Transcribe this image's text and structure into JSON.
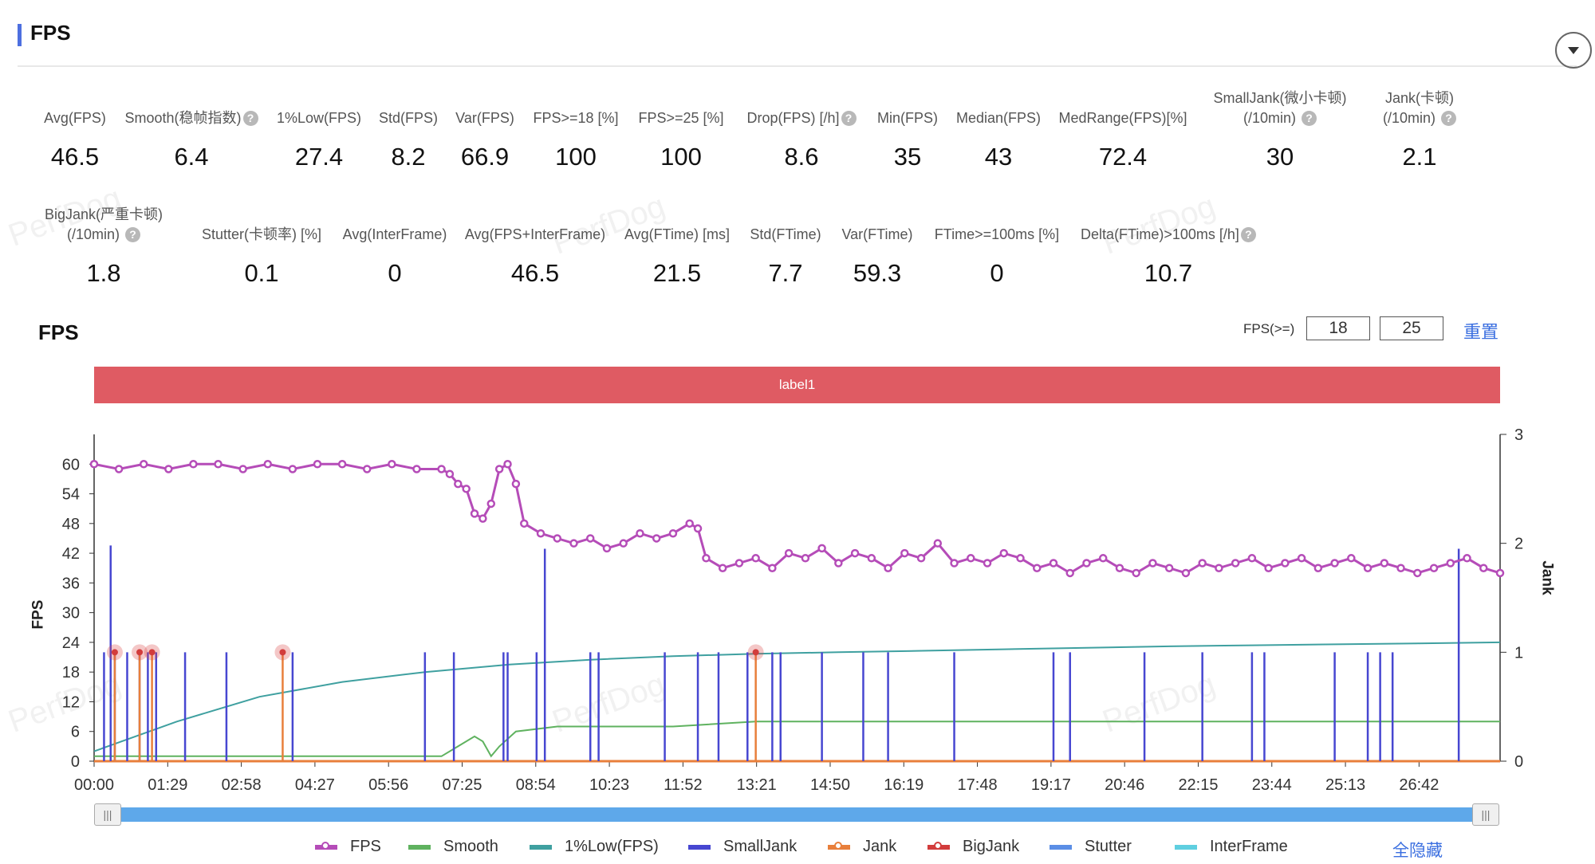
{
  "section": {
    "title": "FPS"
  },
  "metrics_row1": [
    {
      "label": "Avg(FPS)",
      "help": false,
      "value": "46.5"
    },
    {
      "label": "Smooth(稳帧指数)",
      "help": true,
      "value": "6.4"
    },
    {
      "label": "1%Low(FPS)",
      "help": false,
      "value": "27.4"
    },
    {
      "label": "Std(FPS)",
      "help": false,
      "value": "8.2"
    },
    {
      "label": "Var(FPS)",
      "help": false,
      "value": "66.9"
    },
    {
      "label": "FPS>=18 [%]",
      "help": false,
      "value": "100"
    },
    {
      "label": "FPS>=25 [%]",
      "help": false,
      "value": "100"
    },
    {
      "label": "Drop(FPS) [/h]",
      "help": true,
      "value": "8.6"
    },
    {
      "label": "Min(FPS)",
      "help": false,
      "value": "35"
    },
    {
      "label": "Median(FPS)",
      "help": false,
      "value": "43"
    },
    {
      "label": "MedRange(FPS)[%]",
      "help": false,
      "value": "72.4"
    },
    {
      "label": "SmallJank(微小卡顿)",
      "label2": "(/10min)",
      "help": true,
      "value": "30"
    },
    {
      "label": "Jank(卡顿)",
      "label2": "(/10min)",
      "help": true,
      "value": "2.1"
    }
  ],
  "metrics_row2": [
    {
      "label": "BigJank(严重卡顿)",
      "label2": "(/10min)",
      "help": true,
      "value": "1.8"
    },
    {
      "label": "Stutter(卡顿率) [%]",
      "help": false,
      "value": "0.1"
    },
    {
      "label": "Avg(InterFrame)",
      "help": false,
      "value": "0"
    },
    {
      "label": "Avg(FPS+InterFrame)",
      "help": false,
      "value": "46.5"
    },
    {
      "label": "Avg(FTime) [ms]",
      "help": false,
      "value": "21.5"
    },
    {
      "label": "Std(FTime)",
      "help": false,
      "value": "7.7"
    },
    {
      "label": "Var(FTime)",
      "help": false,
      "value": "59.3"
    },
    {
      "label": "FTime>=100ms [%]",
      "help": false,
      "value": "0"
    },
    {
      "label": "Delta(FTime)>100ms [/h]",
      "help": true,
      "value": "10.7"
    }
  ],
  "chart_controls": {
    "title": "FPS",
    "threshold_label": "FPS(>=)",
    "threshold_low": "18",
    "threshold_high": "25",
    "reset_label": "重置",
    "band_label": "label1",
    "hide_all_label": "全隐藏",
    "watermark": "PerfDog"
  },
  "chart_data": {
    "type": "line",
    "title": "FPS",
    "ylabel": "FPS",
    "y2label": "Jank",
    "ylim": [
      0,
      66
    ],
    "y2lim": [
      0,
      3
    ],
    "yticks": [
      0,
      6,
      12,
      18,
      24,
      30,
      36,
      42,
      48,
      54,
      60
    ],
    "y2ticks": [
      0,
      1,
      2,
      3
    ],
    "duration_s": 1700,
    "xticks": [
      "00:00",
      "01:29",
      "02:58",
      "04:27",
      "05:56",
      "07:25",
      "08:54",
      "10:23",
      "11:52",
      "13:21",
      "14:50",
      "16:19",
      "17:48",
      "19:17",
      "20:46",
      "22:15",
      "23:44",
      "25:13",
      "26:42"
    ],
    "x_interval_s": 89,
    "colors": {
      "FPS": "#b54cb8",
      "Smooth": "#5fb25f",
      "1%Low(FPS)": "#3fa0a0",
      "SmallJank": "#4747d1",
      "Jank": "#e87f3b",
      "BigJank": "#d23c3c",
      "Stutter": "#5b8ee6",
      "InterFrame": "#5fcfe0"
    },
    "legend": [
      "FPS",
      "Smooth",
      "1%Low(FPS)",
      "SmallJank",
      "Jank",
      "BigJank",
      "Stutter",
      "InterFrame"
    ],
    "series": [
      {
        "name": "FPS",
        "axis": "left",
        "points": [
          [
            0,
            60
          ],
          [
            30,
            59
          ],
          [
            60,
            60
          ],
          [
            90,
            59
          ],
          [
            120,
            60
          ],
          [
            150,
            60
          ],
          [
            180,
            59
          ],
          [
            210,
            60
          ],
          [
            240,
            59
          ],
          [
            270,
            60
          ],
          [
            300,
            60
          ],
          [
            330,
            59
          ],
          [
            360,
            60
          ],
          [
            390,
            59
          ],
          [
            420,
            59
          ],
          [
            430,
            58
          ],
          [
            440,
            56
          ],
          [
            450,
            55
          ],
          [
            460,
            50
          ],
          [
            470,
            49
          ],
          [
            480,
            52
          ],
          [
            490,
            59
          ],
          [
            500,
            60
          ],
          [
            510,
            56
          ],
          [
            520,
            48
          ],
          [
            540,
            46
          ],
          [
            560,
            45
          ],
          [
            580,
            44
          ],
          [
            600,
            45
          ],
          [
            620,
            43
          ],
          [
            640,
            44
          ],
          [
            660,
            46
          ],
          [
            680,
            45
          ],
          [
            700,
            46
          ],
          [
            720,
            48
          ],
          [
            730,
            47
          ],
          [
            740,
            41
          ],
          [
            760,
            39
          ],
          [
            780,
            40
          ],
          [
            800,
            41
          ],
          [
            820,
            39
          ],
          [
            840,
            42
          ],
          [
            860,
            41
          ],
          [
            880,
            43
          ],
          [
            900,
            40
          ],
          [
            920,
            42
          ],
          [
            940,
            41
          ],
          [
            960,
            39
          ],
          [
            980,
            42
          ],
          [
            1000,
            41
          ],
          [
            1020,
            44
          ],
          [
            1040,
            40
          ],
          [
            1060,
            41
          ],
          [
            1080,
            40
          ],
          [
            1100,
            42
          ],
          [
            1120,
            41
          ],
          [
            1140,
            39
          ],
          [
            1160,
            40
          ],
          [
            1180,
            38
          ],
          [
            1200,
            40
          ],
          [
            1220,
            41
          ],
          [
            1240,
            39
          ],
          [
            1260,
            38
          ],
          [
            1280,
            40
          ],
          [
            1300,
            39
          ],
          [
            1320,
            38
          ],
          [
            1340,
            40
          ],
          [
            1360,
            39
          ],
          [
            1380,
            40
          ],
          [
            1400,
            41
          ],
          [
            1420,
            39
          ],
          [
            1440,
            40
          ],
          [
            1460,
            41
          ],
          [
            1480,
            39
          ],
          [
            1500,
            40
          ],
          [
            1520,
            41
          ],
          [
            1540,
            39
          ],
          [
            1560,
            40
          ],
          [
            1580,
            39
          ],
          [
            1600,
            38
          ],
          [
            1620,
            39
          ],
          [
            1640,
            40
          ],
          [
            1660,
            41
          ],
          [
            1680,
            39
          ],
          [
            1700,
            38
          ]
        ]
      },
      {
        "name": "Smooth",
        "axis": "left",
        "points": [
          [
            0,
            1
          ],
          [
            100,
            1
          ],
          [
            200,
            1
          ],
          [
            300,
            1
          ],
          [
            400,
            1
          ],
          [
            420,
            1
          ],
          [
            440,
            3
          ],
          [
            460,
            5
          ],
          [
            470,
            4
          ],
          [
            480,
            1
          ],
          [
            490,
            3
          ],
          [
            510,
            6
          ],
          [
            560,
            7
          ],
          [
            620,
            7
          ],
          [
            700,
            7
          ],
          [
            800,
            8
          ],
          [
            900,
            8
          ],
          [
            1000,
            8
          ],
          [
            1100,
            8
          ],
          [
            1200,
            8
          ],
          [
            1300,
            8
          ],
          [
            1400,
            8
          ],
          [
            1500,
            8
          ],
          [
            1600,
            8
          ],
          [
            1700,
            8
          ]
        ]
      },
      {
        "name": "1%Low(FPS)",
        "axis": "left",
        "points": [
          [
            0,
            2
          ],
          [
            100,
            8
          ],
          [
            200,
            13
          ],
          [
            300,
            16
          ],
          [
            400,
            18
          ],
          [
            500,
            19.5
          ],
          [
            600,
            20.5
          ],
          [
            700,
            21.2
          ],
          [
            800,
            21.7
          ],
          [
            900,
            22
          ],
          [
            1000,
            22.3
          ],
          [
            1100,
            22.6
          ],
          [
            1200,
            22.9
          ],
          [
            1300,
            23.2
          ],
          [
            1400,
            23.4
          ],
          [
            1500,
            23.6
          ],
          [
            1600,
            23.8
          ],
          [
            1700,
            24
          ]
        ]
      },
      {
        "name": "Jank",
        "axis": "right",
        "points": [
          [
            0,
            0
          ],
          [
            1700,
            0
          ]
        ]
      }
    ],
    "smalljank_spikes": [
      {
        "t": 20,
        "v": 1.98
      },
      {
        "t": 12,
        "v": 1
      },
      {
        "t": 25,
        "v": 1
      },
      {
        "t": 40,
        "v": 1
      },
      {
        "t": 55,
        "v": 1
      },
      {
        "t": 65,
        "v": 1
      },
      {
        "t": 75,
        "v": 1
      },
      {
        "t": 110,
        "v": 1
      },
      {
        "t": 160,
        "v": 1
      },
      {
        "t": 240,
        "v": 1
      },
      {
        "t": 400,
        "v": 1
      },
      {
        "t": 435,
        "v": 1
      },
      {
        "t": 495,
        "v": 1
      },
      {
        "t": 500,
        "v": 1
      },
      {
        "t": 535,
        "v": 1
      },
      {
        "t": 545,
        "v": 1.95
      },
      {
        "t": 600,
        "v": 1
      },
      {
        "t": 610,
        "v": 1
      },
      {
        "t": 690,
        "v": 1
      },
      {
        "t": 730,
        "v": 1
      },
      {
        "t": 755,
        "v": 1
      },
      {
        "t": 790,
        "v": 1
      },
      {
        "t": 820,
        "v": 1
      },
      {
        "t": 830,
        "v": 1
      },
      {
        "t": 880,
        "v": 1
      },
      {
        "t": 930,
        "v": 1
      },
      {
        "t": 960,
        "v": 1
      },
      {
        "t": 1040,
        "v": 1
      },
      {
        "t": 1160,
        "v": 1
      },
      {
        "t": 1180,
        "v": 1
      },
      {
        "t": 1270,
        "v": 1
      },
      {
        "t": 1340,
        "v": 1
      },
      {
        "t": 1400,
        "v": 1
      },
      {
        "t": 1415,
        "v": 1
      },
      {
        "t": 1500,
        "v": 1
      },
      {
        "t": 1540,
        "v": 1
      },
      {
        "t": 1555,
        "v": 1
      },
      {
        "t": 1570,
        "v": 1
      },
      {
        "t": 1650,
        "v": 1.95
      }
    ],
    "bigjank_points": [
      {
        "t": 25,
        "v": 1
      },
      {
        "t": 55,
        "v": 1
      },
      {
        "t": 70,
        "v": 1
      },
      {
        "t": 228,
        "v": 1
      },
      {
        "t": 800,
        "v": 1
      }
    ]
  }
}
